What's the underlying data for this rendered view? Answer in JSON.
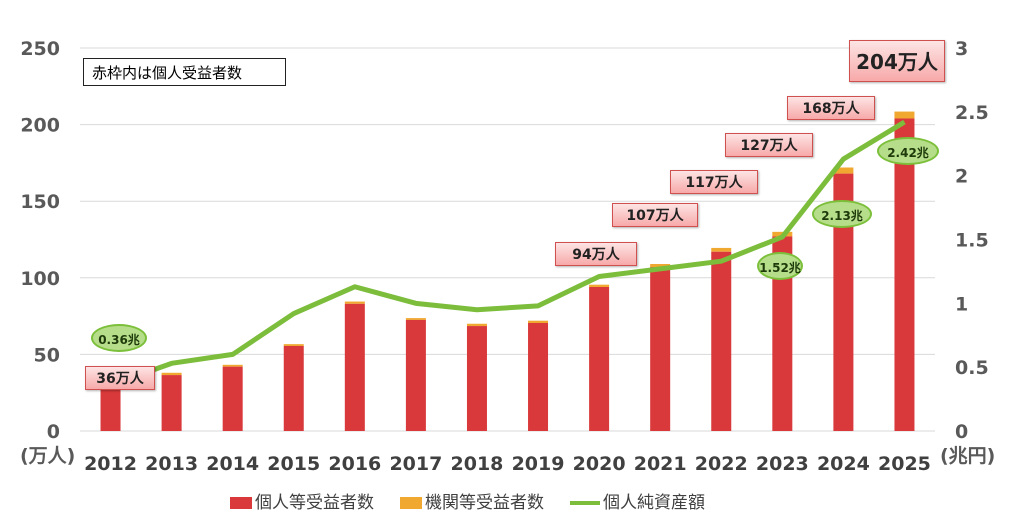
{
  "chart_data": {
    "type": "bar",
    "note": "赤枠内は個人受益者数",
    "categories": [
      "2012",
      "2013",
      "2014",
      "2015",
      "2016",
      "2017",
      "2018",
      "2019",
      "2020",
      "2021",
      "2022",
      "2023",
      "2024",
      "2025"
    ],
    "series": [
      {
        "name": "個人等受益者数",
        "type": "bar",
        "axis": "left",
        "color": "#d9393a",
        "values": [
          36,
          36.5,
          42,
          55.5,
          83,
          72.5,
          68.5,
          70.5,
          94,
          107,
          117,
          127,
          168,
          204
        ]
      },
      {
        "name": "機関等受益者数",
        "type": "bar",
        "axis": "left",
        "color": "#f0a830",
        "values": [
          1,
          1.5,
          1.2,
          1.2,
          1.5,
          1.2,
          1.5,
          1.5,
          1.5,
          2,
          2.5,
          3,
          4,
          4.5
        ]
      },
      {
        "name": "個人純資産額",
        "type": "line",
        "axis": "right",
        "color": "#7dbd3c",
        "values": [
          0.36,
          0.53,
          0.6,
          0.92,
          1.13,
          1.0,
          0.95,
          0.98,
          1.21,
          1.27,
          1.33,
          1.52,
          2.13,
          2.42
        ]
      }
    ],
    "left_axis": {
      "unit": "(万人)",
      "ticks": [
        "0",
        "50",
        "100",
        "150",
        "200",
        "250"
      ],
      "ylim": [
        0,
        250
      ]
    },
    "right_axis": {
      "unit": "(兆円)",
      "ticks": [
        "0",
        "0.5",
        "1",
        "1.5",
        "2",
        "2.5",
        "3"
      ],
      "ylim": [
        0,
        3
      ]
    },
    "bar_labels": [
      {
        "year": "2012",
        "text": "36万人"
      },
      {
        "year": "2020",
        "text": "94万人"
      },
      {
        "year": "2021",
        "text": "107万人"
      },
      {
        "year": "2022",
        "text": "117万人"
      },
      {
        "year": "2023",
        "text": "127万人"
      },
      {
        "year": "2024",
        "text": "168万人"
      },
      {
        "year": "2025",
        "text": "204万人"
      }
    ],
    "line_labels": [
      {
        "year": "2012",
        "text": "0.36兆"
      },
      {
        "year": "2023",
        "text": "1.52兆"
      },
      {
        "year": "2024",
        "text": "2.13兆"
      },
      {
        "year": "2025",
        "text": "2.42兆"
      }
    ],
    "grid": true,
    "legend": "bottom"
  }
}
